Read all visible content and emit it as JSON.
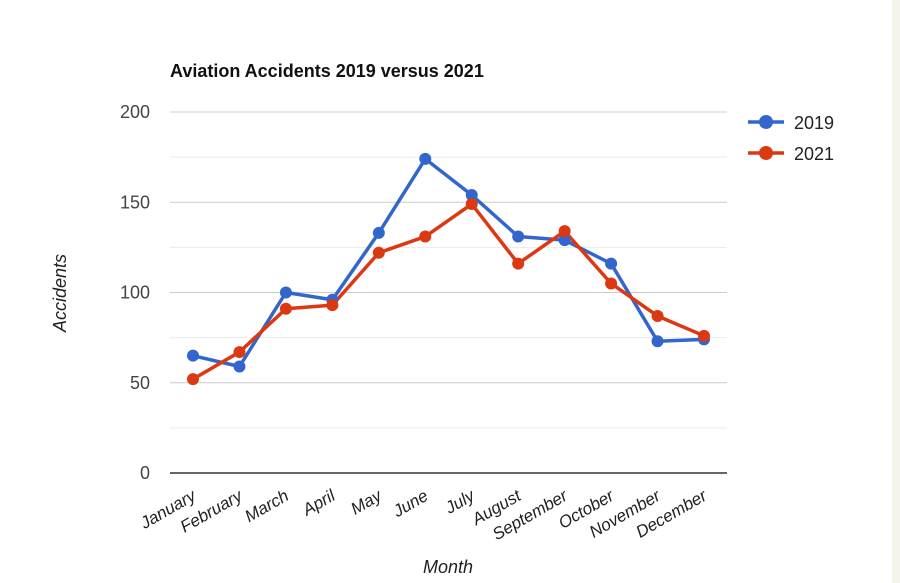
{
  "chart_data": {
    "type": "line",
    "title": "Aviation Accidents 2019 versus 2021",
    "xlabel": "Month",
    "ylabel": "Accidents",
    "categories": [
      "January",
      "February",
      "March",
      "April",
      "May",
      "June",
      "July",
      "August",
      "September",
      "October",
      "November",
      "December"
    ],
    "series": [
      {
        "name": "2019",
        "color": "#3366cc",
        "values": [
          65,
          59,
          100,
          96,
          133,
          174,
          154,
          131,
          129,
          116,
          73,
          74
        ]
      },
      {
        "name": "2021",
        "color": "#dc3912",
        "values": [
          52,
          67,
          91,
          93,
          122,
          131,
          149,
          116,
          134,
          105,
          87,
          76
        ]
      }
    ],
    "ylim": [
      0,
      200
    ],
    "yticks": [
      "0",
      "50",
      "100",
      "150",
      "200"
    ],
    "grid": true,
    "legend_position": "top-right"
  }
}
